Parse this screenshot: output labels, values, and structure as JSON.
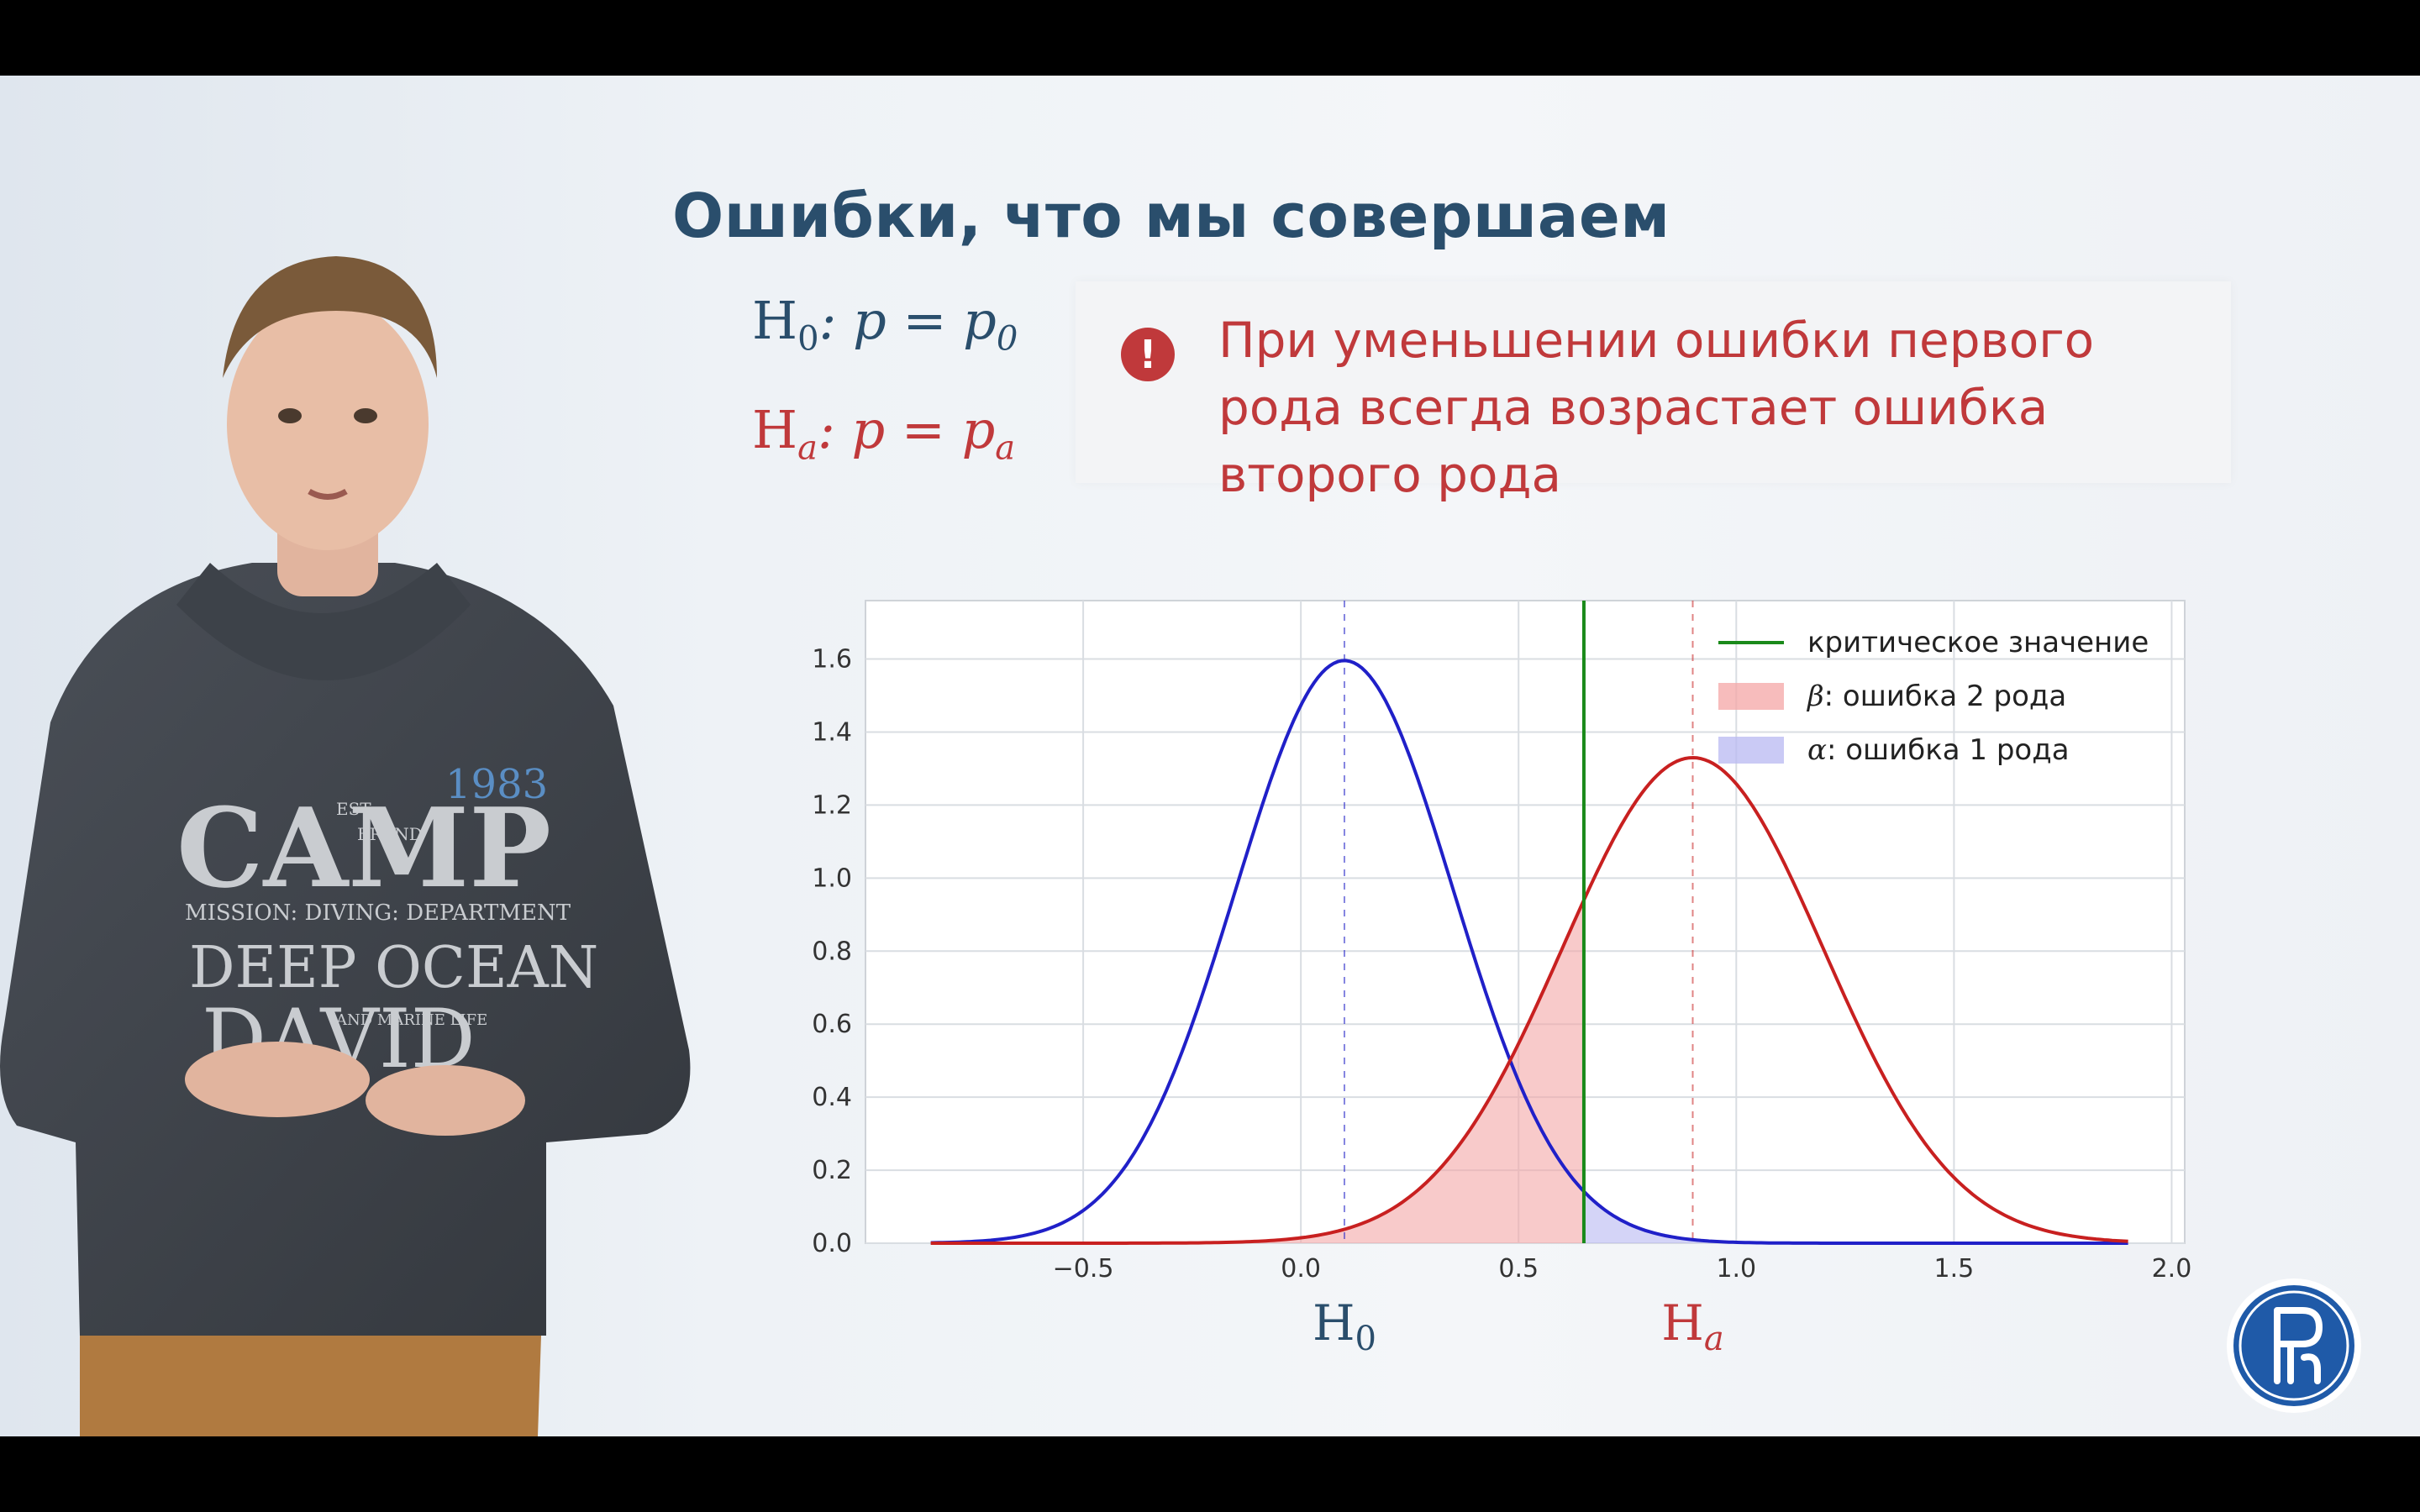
{
  "slide": {
    "title": "Ошибки, что мы совершаем",
    "hypothesis_h0": {
      "head": "H",
      "sub": "0",
      "rest": ": p = p",
      "rest_sub": "0"
    },
    "hypothesis_ha": {
      "head": "H",
      "sub": "a",
      "rest": ": p = p",
      "rest_sub": "a"
    },
    "callout_text": "При уменьшении ошибки первого рода всегда возрастает ошибка второго рода",
    "callout_icon": "exclamation-icon",
    "colors": {
      "title": "#2a4e6c",
      "accent_red": "#c0393b",
      "blue": "#2020c8",
      "green": "#1a8a1a"
    }
  },
  "chart_data": {
    "type": "line",
    "title": "",
    "xlabel": "",
    "ylabel": "",
    "xlim": [
      -1.0,
      2.03
    ],
    "ylim": [
      0.0,
      1.76
    ],
    "xticks": [
      -0.5,
      0.0,
      0.5,
      1.0,
      1.5,
      2.0
    ],
    "xtick_labels": [
      "−0.5",
      "0.0",
      "0.5",
      "1.0",
      "1.5",
      "2.0"
    ],
    "yticks": [
      0.0,
      0.2,
      0.4,
      0.6,
      0.8,
      1.0,
      1.2,
      1.4,
      1.6
    ],
    "ytick_labels": [
      "0.0",
      "0.2",
      "0.4",
      "0.6",
      "0.8",
      "1.0",
      "1.2",
      "1.4",
      "1.6"
    ],
    "grid": true,
    "legend_position": "top-right",
    "series": [
      {
        "label": "H0",
        "distribution": "normal",
        "mean": 0.1,
        "sd": 0.25,
        "x_range": [
          -0.85,
          1.9
        ],
        "color": "#2020c8"
      },
      {
        "label": "Ha",
        "distribution": "normal",
        "mean": 0.9,
        "sd": 0.3,
        "x_range": [
          -0.85,
          1.9
        ],
        "color": "#c82020"
      }
    ],
    "critical_value": 0.65,
    "legend": [
      {
        "label": "критическое значение",
        "kind": "line",
        "color": "#1a8a1a"
      },
      {
        "symbol": "β",
        "label": ": ошибка 2 рода",
        "kind": "patch",
        "color": "#f4a6a6"
      },
      {
        "symbol": "α",
        "label": ": ошибка 1 рода",
        "kind": "patch",
        "color": "#b8b8f2"
      }
    ],
    "below_axis_labels": [
      {
        "head": "H",
        "sub": "0",
        "x": 0.1,
        "color": "#2a4e6c"
      },
      {
        "head": "H",
        "sub": "a",
        "x": 0.9,
        "color": "#c0393b"
      }
    ]
  },
  "presenter": {
    "sweater_lines": [
      "CAMP",
      "MISSION: DIVING: DEPARTMENT",
      "DEEP OCEAN",
      "DAVID",
      "1983",
      "EST.",
      "BRAND",
      "AND MARINE LIFE"
    ]
  }
}
